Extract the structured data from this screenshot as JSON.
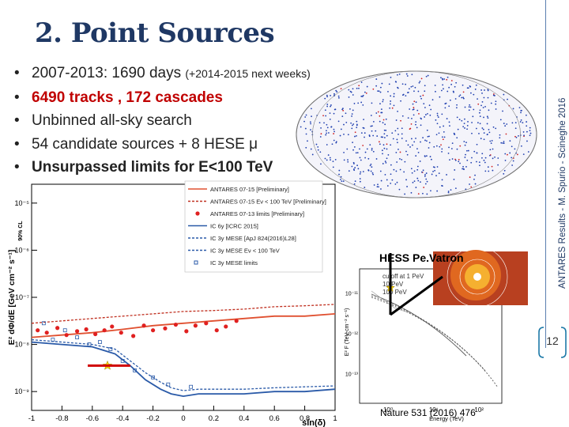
{
  "slide": {
    "title": "2. Point Sources",
    "bullets": [
      {
        "text": "2007-2013: 1690 days",
        "note": "(+2014-2015 next weeks)"
      },
      {
        "tracks": "6490 tracks",
        "sep": " , ",
        "cascades": "172 cascades"
      },
      {
        "text": "Unbinned all-sky search"
      },
      {
        "text": "54 candidate sources + 8 HESE μ"
      },
      {
        "text": "Unsurpassed limits for E<100 TeV"
      }
    ],
    "sidebar_text": "ANTARES Results - M. Spurio - Scineghe 2016",
    "page_number": "12",
    "hess_label": "HESS Pe.Vatron",
    "nature_label": "Nature 531 (2016) 476",
    "colors": {
      "title": "#1f3864",
      "accent_red": "#c00000",
      "limit_blue": "#1f4e9a"
    }
  },
  "chart_data": [
    {
      "type": "scatter",
      "title": "",
      "xlabel": "sin(δ)",
      "ylabel": "E² dΦ/dE [GeV cm⁻² s⁻¹]",
      "ylabel_superscript": "90% CL",
      "x_ticks": [
        "-1",
        "-0.8",
        "-0.6",
        "-0.4",
        "-0.2",
        "0",
        "0.2",
        "0.4",
        "0.6",
        "0.8",
        "1"
      ],
      "y_ticks": [
        "10⁻⁹",
        "10⁻⁸",
        "10⁻⁷",
        "10⁻⁶",
        "10⁻⁵"
      ],
      "xlim": [
        -1,
        1
      ],
      "ylog_range": [
        -9.4,
        -4.6
      ],
      "legend": [
        "ANTARES 07-15 [Preliminary]",
        "ANTARES 07-15 Eν < 100 TeV [Preliminary]",
        "ANTARES 07-13 limits [Preliminary]",
        "IC 6y [ICRC 2015]",
        "IC 3y MESE [ApJ 824(2016)L28]",
        "IC 3y MESE Eν < 100 TeV",
        "IC 3y MESE limits"
      ],
      "series": [
        {
          "name": "ANTARES 07-15 [Preliminary]",
          "style": "line",
          "color": "#e05030",
          "x": [
            -1,
            -0.8,
            -0.6,
            -0.4,
            -0.2,
            0,
            0.2,
            0.4,
            0.6,
            0.8,
            1
          ],
          "y": [
            -7.85,
            -7.8,
            -7.75,
            -7.68,
            -7.6,
            -7.55,
            -7.5,
            -7.45,
            -7.4,
            -7.4,
            -7.35
          ]
        },
        {
          "name": "ANTARES 07-15 Eν < 100 TeV [Preliminary]",
          "style": "dashed",
          "color": "#c03020",
          "x": [
            -1,
            -0.8,
            -0.6,
            -0.4,
            -0.2,
            0,
            0.2,
            0.4,
            0.6,
            0.8,
            1
          ],
          "y": [
            -7.55,
            -7.5,
            -7.45,
            -7.4,
            -7.35,
            -7.3,
            -7.28,
            -7.25,
            -7.2,
            -7.18,
            -7.15
          ]
        },
        {
          "name": "ANTARES 07-13 limits [Preliminary]",
          "style": "points",
          "color": "#e02020",
          "x": [
            -0.96,
            -0.9,
            -0.83,
            -0.77,
            -0.7,
            -0.64,
            -0.58,
            -0.52,
            -0.47,
            -0.41,
            -0.33,
            -0.26,
            -0.2,
            -0.12,
            -0.05,
            0.02,
            0.08,
            0.15,
            0.22,
            0.28,
            0.35
          ],
          "y": [
            -7.7,
            -7.75,
            -7.65,
            -7.8,
            -7.72,
            -7.68,
            -7.78,
            -7.7,
            -7.62,
            -7.75,
            -7.82,
            -7.6,
            -7.7,
            -7.66,
            -7.58,
            -7.72,
            -7.6,
            -7.55,
            -7.7,
            -7.62,
            -7.5
          ]
        },
        {
          "name": "IC 6y [ICRC 2015]",
          "style": "line",
          "color": "#2a5aa8",
          "x": [
            -1,
            -0.8,
            -0.6,
            -0.45,
            -0.35,
            -0.25,
            -0.15,
            -0.08,
            0,
            0.1,
            0.2,
            0.4,
            0.6,
            0.8,
            1
          ],
          "y": [
            -7.95,
            -8.0,
            -8.05,
            -8.2,
            -8.45,
            -8.75,
            -8.95,
            -9.05,
            -9.1,
            -9.05,
            -9.05,
            -9.05,
            -9.0,
            -9.0,
            -8.95
          ]
        },
        {
          "name": "IC 3y MESE [ApJ 824(2016)L28]",
          "style": "dashed",
          "color": "#2a5aa8",
          "x": [
            -1,
            -0.8,
            -0.6,
            -0.45,
            -0.35,
            -0.25,
            -0.15,
            -0.08,
            0,
            0.1,
            0.2,
            0.4,
            0.6,
            0.8,
            1
          ],
          "y": [
            -7.9,
            -7.95,
            -8.0,
            -8.1,
            -8.35,
            -8.6,
            -8.8,
            -8.92,
            -8.98,
            -8.95,
            -8.95,
            -8.95,
            -8.92,
            -8.9,
            -8.88
          ]
        },
        {
          "name": "IC 3y MESE limits",
          "style": "squares",
          "color": "#2a5aa8",
          "x": [
            -0.92,
            -0.86,
            -0.78,
            -0.7,
            -0.62,
            -0.55,
            -0.48,
            -0.4,
            -0.32,
            -0.2,
            -0.1,
            0.05
          ],
          "y": [
            -7.55,
            -7.9,
            -7.7,
            -7.85,
            -8.0,
            -7.95,
            -8.1,
            -8.35,
            -8.55,
            -8.7,
            -8.85,
            -8.9
          ]
        }
      ],
      "annotations": [
        {
          "label": "star",
          "x": -0.5,
          "y": -8.45,
          "color": "#f5d000"
        },
        {
          "label": "bar",
          "x_range": [
            -0.63,
            -0.35
          ],
          "y": -8.45,
          "color": "#d00000"
        }
      ]
    },
    {
      "type": "line",
      "title": "",
      "xlabel": "Energy (TeV)",
      "ylabel": "E² F (TeV cm⁻² s⁻¹)",
      "x_ticks": [
        "10⁰",
        "10¹",
        "10²"
      ],
      "y_ticks": [
        "10⁻¹¹",
        "10⁻¹²",
        "10⁻¹³"
      ],
      "legend": [
        "cutoff at 1 PeV",
        "10 PeV",
        "100 PeV"
      ]
    }
  ]
}
